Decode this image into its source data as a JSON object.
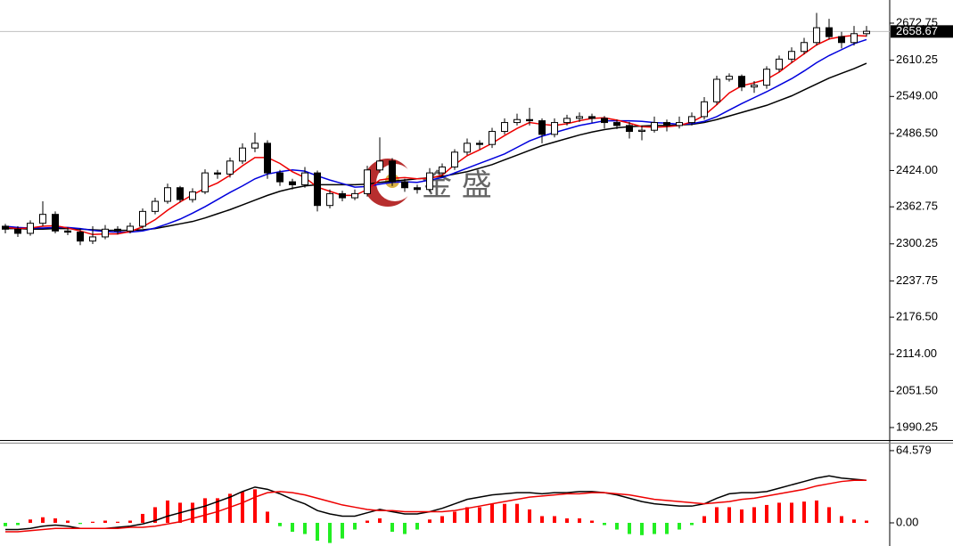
{
  "chart_data": [
    {
      "type": "candlestick",
      "watermark": "金 盛",
      "open": [
        2330,
        2325,
        2318,
        2335,
        2350,
        2322,
        2320,
        2305,
        2312,
        2325,
        2322,
        2330,
        2355,
        2372,
        2395,
        2375,
        2388,
        2420,
        2418,
        2440,
        2462,
        2470,
        2420,
        2405,
        2400,
        2420,
        2365,
        2385,
        2378,
        2385,
        2425,
        2440,
        2405,
        2395,
        2392,
        2420,
        2430,
        2455,
        2470,
        2468,
        2490,
        2505,
        2510,
        2508,
        2485,
        2505,
        2512,
        2515,
        2512,
        2505,
        2500,
        2490,
        2492,
        2505,
        2500,
        2505,
        2515,
        2540,
        2578,
        2583,
        2565,
        2568,
        2595,
        2612,
        2625,
        2640,
        2665,
        2650,
        2640,
        2655
      ],
      "high": [
        2334,
        2330,
        2340,
        2372,
        2355,
        2328,
        2326,
        2330,
        2332,
        2330,
        2336,
        2360,
        2378,
        2402,
        2398,
        2394,
        2426,
        2425,
        2446,
        2470,
        2488,
        2475,
        2425,
        2410,
        2430,
        2424,
        2392,
        2390,
        2392,
        2432,
        2480,
        2445,
        2410,
        2400,
        2428,
        2436,
        2460,
        2478,
        2475,
        2496,
        2512,
        2520,
        2530,
        2512,
        2512,
        2518,
        2522,
        2520,
        2516,
        2510,
        2506,
        2500,
        2515,
        2510,
        2515,
        2522,
        2548,
        2584,
        2588,
        2586,
        2575,
        2600,
        2618,
        2632,
        2648,
        2690,
        2680,
        2658,
        2668,
        2668
      ],
      "low": [
        2318,
        2312,
        2314,
        2330,
        2318,
        2315,
        2298,
        2300,
        2308,
        2316,
        2318,
        2326,
        2350,
        2368,
        2370,
        2370,
        2384,
        2410,
        2412,
        2435,
        2455,
        2410,
        2398,
        2392,
        2395,
        2355,
        2360,
        2372,
        2374,
        2380,
        2420,
        2398,
        2388,
        2385,
        2388,
        2414,
        2425,
        2450,
        2460,
        2462,
        2485,
        2500,
        2500,
        2470,
        2480,
        2500,
        2506,
        2505,
        2495,
        2494,
        2478,
        2475,
        2488,
        2490,
        2495,
        2500,
        2510,
        2535,
        2574,
        2558,
        2555,
        2562,
        2590,
        2606,
        2620,
        2635,
        2645,
        2630,
        2635,
        2650
      ],
      "close": [
        2325,
        2318,
        2335,
        2350,
        2322,
        2320,
        2305,
        2312,
        2325,
        2322,
        2330,
        2355,
        2372,
        2395,
        2375,
        2388,
        2420,
        2418,
        2440,
        2462,
        2470,
        2420,
        2405,
        2400,
        2420,
        2365,
        2385,
        2378,
        2385,
        2425,
        2440,
        2405,
        2395,
        2392,
        2420,
        2430,
        2455,
        2470,
        2468,
        2490,
        2505,
        2510,
        2508,
        2485,
        2505,
        2512,
        2515,
        2512,
        2505,
        2500,
        2490,
        2492,
        2505,
        2500,
        2505,
        2515,
        2540,
        2578,
        2583,
        2565,
        2568,
        2595,
        2612,
        2625,
        2640,
        2665,
        2650,
        2640,
        2655,
        2659
      ],
      "lines": [
        {
          "color": "#000000",
          "values": [
            2326,
            2326,
            2325,
            2325,
            2326,
            2326,
            2325,
            2324,
            2323,
            2323,
            2323,
            2324,
            2326,
            2330,
            2334,
            2338,
            2344,
            2351,
            2358,
            2366,
            2374,
            2382,
            2389,
            2394,
            2398,
            2400,
            2400,
            2400,
            2400,
            2401,
            2404,
            2406,
            2408,
            2410,
            2412,
            2414,
            2418,
            2422,
            2428,
            2434,
            2442,
            2450,
            2458,
            2466,
            2472,
            2478,
            2484,
            2489,
            2493,
            2496,
            2498,
            2499,
            2500,
            2500,
            2501,
            2502,
            2505,
            2510,
            2516,
            2522,
            2528,
            2534,
            2542,
            2550,
            2560,
            2570,
            2580,
            2588,
            2596,
            2605
          ]
        },
        {
          "color": "#0000dd",
          "values": [
            2330,
            2328,
            2327,
            2327,
            2328,
            2328,
            2326,
            2323,
            2321,
            2320,
            2320,
            2322,
            2327,
            2334,
            2342,
            2352,
            2363,
            2375,
            2387,
            2398,
            2410,
            2418,
            2422,
            2425,
            2423,
            2415,
            2408,
            2402,
            2396,
            2397,
            2401,
            2404,
            2405,
            2404,
            2408,
            2412,
            2420,
            2428,
            2436,
            2444,
            2452,
            2463,
            2474,
            2482,
            2488,
            2494,
            2500,
            2504,
            2508,
            2508,
            2508,
            2507,
            2505,
            2504,
            2502,
            2503,
            2507,
            2515,
            2526,
            2537,
            2547,
            2557,
            2568,
            2579,
            2592,
            2606,
            2618,
            2628,
            2638,
            2645
          ]
        },
        {
          "color": "#ee0000",
          "values": [
            2328,
            2326,
            2327,
            2330,
            2331,
            2327,
            2322,
            2316,
            2317,
            2317,
            2321,
            2329,
            2341,
            2357,
            2371,
            2383,
            2394,
            2403,
            2416,
            2432,
            2446,
            2446,
            2436,
            2422,
            2412,
            2396,
            2389,
            2382,
            2382,
            2392,
            2408,
            2411,
            2412,
            2410,
            2411,
            2416,
            2434,
            2449,
            2459,
            2470,
            2483,
            2495,
            2505,
            2502,
            2500,
            2503,
            2508,
            2512,
            2513,
            2509,
            2504,
            2498,
            2497,
            2498,
            2500,
            2506,
            2517,
            2535,
            2555,
            2567,
            2572,
            2578,
            2590,
            2606,
            2621,
            2636,
            2646,
            2650,
            2652,
            2651
          ]
        }
      ],
      "last_price": 2658.67,
      "ylim": [
        1969.2,
        2711.8
      ],
      "yticks": [
        {
          "value": 2672.75,
          "label": "2672.75"
        },
        {
          "value": 2610.25,
          "label": "2610.25"
        },
        {
          "value": 2549.0,
          "label": "2549.00"
        },
        {
          "value": 2486.5,
          "label": "2486.50"
        },
        {
          "value": 2424.0,
          "label": "2424.00"
        },
        {
          "value": 2362.75,
          "label": "2362.75"
        },
        {
          "value": 2300.25,
          "label": "2300.25"
        },
        {
          "value": 2237.75,
          "label": "2237.75"
        },
        {
          "value": 2176.5,
          "label": "2176.50"
        },
        {
          "value": 2114.0,
          "label": "2114.00"
        },
        {
          "value": 2051.5,
          "label": "2051.50"
        },
        {
          "value": 1990.25,
          "label": "1990.25"
        }
      ]
    },
    {
      "type": "macd",
      "histogram": [
        -3,
        -2,
        3,
        5,
        4,
        2,
        -1,
        1,
        2,
        1,
        2,
        8,
        14,
        20,
        18,
        18,
        22,
        22,
        26,
        28,
        30,
        10,
        -3,
        -8,
        -10,
        -16,
        -18,
        -14,
        -6,
        2,
        4,
        -8,
        -10,
        -6,
        3,
        6,
        10,
        14,
        14,
        17,
        17,
        17,
        12,
        6,
        6,
        4,
        4,
        2,
        -2,
        -6,
        -10,
        -11,
        -10,
        -10,
        -6,
        -2,
        6,
        14,
        14,
        12,
        14,
        16,
        18,
        18,
        19,
        20,
        14,
        6,
        3,
        2
      ],
      "positive_color": "#ff0000",
      "negative_color": "#22ee22",
      "lines": [
        {
          "color": "#000000",
          "values": [
            -6,
            -6,
            -5,
            -3,
            -2,
            -3,
            -5,
            -5,
            -5,
            -4,
            -3,
            -1,
            2,
            6,
            9,
            12,
            15,
            19,
            23,
            28,
            32,
            30,
            26,
            21,
            17,
            11,
            8,
            6,
            6,
            9,
            12,
            10,
            8,
            8,
            10,
            13,
            17,
            21,
            23,
            25,
            26,
            27,
            27,
            26,
            27,
            27,
            28,
            28,
            27,
            25,
            22,
            19,
            17,
            16,
            15,
            15,
            17,
            22,
            26,
            27,
            27,
            28,
            31,
            34,
            37,
            40,
            42,
            40,
            39,
            38
          ]
        },
        {
          "color": "#ee0000",
          "values": [
            -8,
            -8,
            -7,
            -6,
            -5,
            -5,
            -5,
            -5,
            -5,
            -5,
            -4,
            -4,
            -3,
            -1,
            1,
            4,
            7,
            10,
            14,
            18,
            23,
            27,
            28,
            27,
            25,
            22,
            19,
            16,
            14,
            12,
            11,
            11,
            10,
            10,
            10,
            10,
            11,
            13,
            15,
            17,
            19,
            21,
            23,
            24,
            25,
            26,
            26,
            27,
            27,
            26,
            25,
            23,
            21,
            20,
            19,
            18,
            17,
            18,
            19,
            21,
            22,
            24,
            26,
            28,
            30,
            33,
            35,
            37,
            38,
            38
          ]
        }
      ],
      "ylim": [
        -20.7,
        70.9
      ],
      "yticks": [
        64.579,
        {
          "value": 0,
          "label": "0.00"
        }
      ]
    }
  ]
}
